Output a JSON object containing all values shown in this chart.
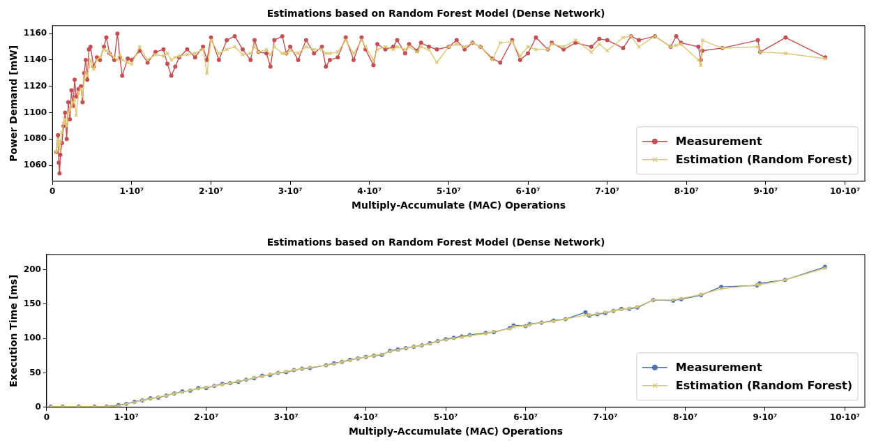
{
  "chart_data": [
    {
      "type": "line",
      "title": "Estimations based on Random Forest Model (Dense Network)",
      "xlabel": "Multiply-Accumulate (MAC) Operations",
      "ylabel": "Power Demand [mW]",
      "x": [
        500000.0,
        700000.0,
        800000.0,
        900000.0,
        1000000.0,
        1200000.0,
        1400000.0,
        1600000.0,
        1800000.0,
        2000000.0,
        2200000.0,
        2400000.0,
        2600000.0,
        2800000.0,
        3000000.0,
        3300000.0,
        3600000.0,
        3800000.0,
        4000000.0,
        4200000.0,
        4400000.0,
        4600000.0,
        4800000.0,
        5200000.0,
        5600000.0,
        6000000.0,
        6500000.0,
        6800000.0,
        7200000.0,
        7800000.0,
        8200000.0,
        8500000.0,
        8800000.0,
        9500000.0,
        10000000.0,
        11000000.0,
        12000000.0,
        13000000.0,
        14000000.0,
        14500000.0,
        15000000.0,
        15500000.0,
        16000000.0,
        17000000.0,
        18000000.0,
        19000000.0,
        19500000.0,
        20000000.0,
        21000000.0,
        22000000.0,
        23000000.0,
        24000000.0,
        25000000.0,
        25500000.0,
        26000000.0,
        27000000.0,
        27500000.0,
        28000000.0,
        29000000.0,
        29500000.0,
        30000000.0,
        31000000.0,
        32000000.0,
        33000000.0,
        34000000.0,
        34500000.0,
        35000000.0,
        36000000.0,
        37000000.0,
        38000000.0,
        39000000.0,
        39500000.0,
        40500000.0,
        41000000.0,
        42000000.0,
        43000000.0,
        43500000.0,
        44500000.0,
        45000000.0,
        46000000.0,
        46500000.0,
        47500000.0,
        48500000.0,
        50000000.0,
        51000000.0,
        52000000.0,
        53000000.0,
        54000000.0,
        55500000.0,
        56500000.0,
        58000000.0,
        59000000.0,
        60000000.0,
        61000000.0,
        62500000.0,
        63000000.0,
        64500000.0,
        66000000.0,
        68000000.0,
        69000000.0,
        70000000.0,
        72000000.0,
        73000000.0,
        74000000.0,
        76000000.0,
        78000000.0,
        78700000.0,
        79300000.0,
        81500000.0,
        81800000.0,
        82000000.0,
        84500000.0,
        89000000.0,
        89300000.0,
        92500000.0,
        97500000.0
      ],
      "series": [
        {
          "name": "Measurement",
          "color": "#c44e52",
          "marker": "circle",
          "values": [
            1070,
            1083,
            1062,
            1054,
            1068,
            1077,
            1090,
            1100,
            1080,
            1108,
            1095,
            1117,
            1105,
            1125,
            1112,
            1118,
            1120,
            1108,
            1130,
            1140,
            1125,
            1148,
            1150,
            1135,
            1142,
            1140,
            1150,
            1157,
            1145,
            1140,
            1160,
            1142,
            1128,
            1141,
            1140,
            1147,
            1138,
            1146,
            1148,
            1137,
            1128,
            1135,
            1142,
            1148,
            1142,
            1150,
            1140,
            1157,
            1140,
            1155,
            1158,
            1148,
            1140,
            1155,
            1146,
            1145,
            1135,
            1155,
            1158,
            1145,
            1150,
            1140,
            1155,
            1145,
            1150,
            1135,
            1140,
            1142,
            1157,
            1140,
            1157,
            1148,
            1136,
            1152,
            1148,
            1150,
            1155,
            1145,
            1152,
            1147,
            1153,
            1150,
            1148,
            1150,
            1155,
            1148,
            1153,
            1150,
            1141,
            1138,
            1155,
            1140,
            1145,
            1157,
            1148,
            1153,
            1148,
            1153,
            1150,
            1156,
            1155,
            1149,
            1158,
            1155,
            1158,
            1150,
            1158,
            1153,
            1150,
            1140,
            1147,
            1149,
            1155,
            1146,
            1157,
            1142
          ]
        },
        {
          "name": "Estimation (Random Forest)",
          "color": "#dcc873",
          "marker": "cross",
          "values": [
            1070,
            1080,
            1075,
            1072,
            1078,
            1085,
            1092,
            1095,
            1090,
            1100,
            1102,
            1105,
            1108,
            1110,
            1098,
            1115,
            1118,
            1112,
            1125,
            1130,
            1128,
            1135,
            1140,
            1133,
            1140,
            1142,
            1148,
            1147,
            1145,
            1142,
            1140,
            1144,
            1140,
            1138,
            1137,
            1150,
            1140,
            1144,
            1143,
            1145,
            1140,
            1142,
            1143,
            1144,
            1145,
            1148,
            1130,
            1155,
            1145,
            1148,
            1150,
            1144,
            1145,
            1150,
            1146,
            1148,
            1144,
            1150,
            1145,
            1145,
            1147,
            1145,
            1150,
            1148,
            1148,
            1145,
            1145,
            1146,
            1155,
            1145,
            1155,
            1150,
            1140,
            1148,
            1150,
            1148,
            1150,
            1148,
            1150,
            1146,
            1150,
            1148,
            1138,
            1150,
            1152,
            1150,
            1153,
            1150,
            1140,
            1153,
            1154,
            1143,
            1150,
            1148,
            1148,
            1152,
            1150,
            1155,
            1146,
            1152,
            1147,
            1157,
            1158,
            1150,
            1158,
            1150,
            1151,
            1152,
            1140,
            1136,
            1155,
            1149,
            1150,
            1146,
            1145,
            1141
          ]
        }
      ],
      "xlim": [
        0,
        102500000.0
      ],
      "xticks": [
        0,
        {
          "value": 10000000.0,
          "label": "1·10⁷"
        },
        {
          "value": 20000000.0,
          "label": "2·10⁷"
        },
        {
          "value": 30000000.0,
          "label": "3·10⁷"
        },
        {
          "value": 40000000.0,
          "label": "4·10⁷"
        },
        {
          "value": 50000000.0,
          "label": "5·10⁷"
        },
        {
          "value": 60000000.0,
          "label": "6·10⁷"
        },
        {
          "value": 70000000.0,
          "label": "7·10⁷"
        },
        {
          "value": 80000000.0,
          "label": "8·10⁷"
        },
        {
          "value": 90000000.0,
          "label": "9·10⁷"
        },
        {
          "value": 100000000.0,
          "label": "10·10⁷"
        }
      ],
      "ylim": [
        1048,
        1166
      ],
      "yticks": [
        1060,
        1080,
        1100,
        1120,
        1140,
        1160
      ],
      "grid": false,
      "legend": "bottom right",
      "line_style": "solid"
    },
    {
      "type": "line",
      "title": "Estimations based on Random Forest Model (Dense Network)",
      "xlabel": "Multiply-Accumulate (MAC) Operations",
      "ylabel": "Execution Time [ms]",
      "x": [
        500000.0,
        2000000.0,
        4000000.0,
        6000000.0,
        7500000.0,
        9000000.0,
        10000000.0,
        11000000.0,
        12000000.0,
        13000000.0,
        14000000.0,
        15000000.0,
        16000000.0,
        17000000.0,
        18000000.0,
        19000000.0,
        20000000.0,
        21000000.0,
        22000000.0,
        23000000.0,
        24000000.0,
        25000000.0,
        26000000.0,
        27000000.0,
        28000000.0,
        29000000.0,
        30000000.0,
        31000000.0,
        32000000.0,
        33000000.0,
        35000000.0,
        36000000.0,
        37000000.0,
        38000000.0,
        39000000.0,
        40000000.0,
        41000000.0,
        42000000.0,
        43000000.0,
        44000000.0,
        45000000.0,
        46000000.0,
        47000000.0,
        48000000.0,
        49000000.0,
        50000000.0,
        51000000.0,
        52000000.0,
        53000000.0,
        55000000.0,
        56000000.0,
        58000000.0,
        58500000.0,
        60000000.0,
        60500000.0,
        62000000.0,
        63500000.0,
        65000000.0,
        67500000.0,
        68000000.0,
        69000000.0,
        70000000.0,
        71000000.0,
        72000000.0,
        73000000.0,
        74000000.0,
        76000000.0,
        78500000.0,
        79500000.0,
        82000000.0,
        84500000.0,
        89000000.0,
        89300000.0,
        92500000.0,
        97500000.0
      ],
      "series": [
        {
          "name": "Measurement",
          "color": "#4c72b0",
          "marker": "circle",
          "values": [
            1,
            1,
            1,
            1,
            1,
            3,
            5,
            8,
            10,
            13,
            14,
            17,
            20,
            23,
            24,
            28,
            28,
            31,
            34,
            35,
            37,
            40,
            42,
            46,
            47,
            50,
            51,
            54,
            56,
            57,
            61,
            64,
            66,
            69,
            71,
            73,
            75,
            76,
            82,
            84,
            86,
            88,
            90,
            93,
            96,
            99,
            101,
            103,
            105,
            108,
            109,
            115,
            119,
            118,
            121,
            123,
            126,
            128,
            138,
            133,
            135,
            137,
            140,
            143,
            143,
            145,
            156,
            155,
            157,
            163,
            175,
            177,
            180,
            185,
            204
          ]
        },
        {
          "name": "Estimation (Random Forest)",
          "color": "#dcc873",
          "marker": "cross",
          "values": [
            1,
            1,
            1,
            1,
            1,
            2,
            5,
            7,
            10,
            12,
            15,
            17,
            20,
            22,
            25,
            27,
            29,
            31,
            33,
            35,
            38,
            40,
            43,
            45,
            48,
            50,
            52,
            54,
            56,
            58,
            61,
            63,
            66,
            68,
            71,
            73,
            75,
            77,
            81,
            83,
            86,
            88,
            90,
            92,
            96,
            98,
            100,
            102,
            104,
            107,
            110,
            114,
            117,
            118,
            120,
            123,
            125,
            128,
            134,
            134,
            136,
            138,
            140,
            142,
            144,
            146,
            156,
            156,
            158,
            164,
            172,
            178,
            178,
            185,
            202
          ]
        }
      ],
      "xlim": [
        0,
        102500000.0
      ],
      "xticks": [
        0,
        {
          "value": 10000000.0,
          "label": "1·10⁷"
        },
        {
          "value": 20000000.0,
          "label": "2·10⁷"
        },
        {
          "value": 30000000.0,
          "label": "3·10⁷"
        },
        {
          "value": 40000000.0,
          "label": "4·10⁷"
        },
        {
          "value": 50000000.0,
          "label": "5·10⁷"
        },
        {
          "value": 60000000.0,
          "label": "6·10⁷"
        },
        {
          "value": 70000000.0,
          "label": "7·10⁷"
        },
        {
          "value": 80000000.0,
          "label": "8·10⁷"
        },
        {
          "value": 90000000.0,
          "label": "9·10⁷"
        },
        {
          "value": 100000000.0,
          "label": "10·10⁷"
        }
      ],
      "ylim": [
        0,
        222
      ],
      "yticks": [
        0,
        50,
        100,
        150,
        200
      ],
      "grid": false,
      "legend": "bottom right",
      "line_style": "solid"
    }
  ]
}
